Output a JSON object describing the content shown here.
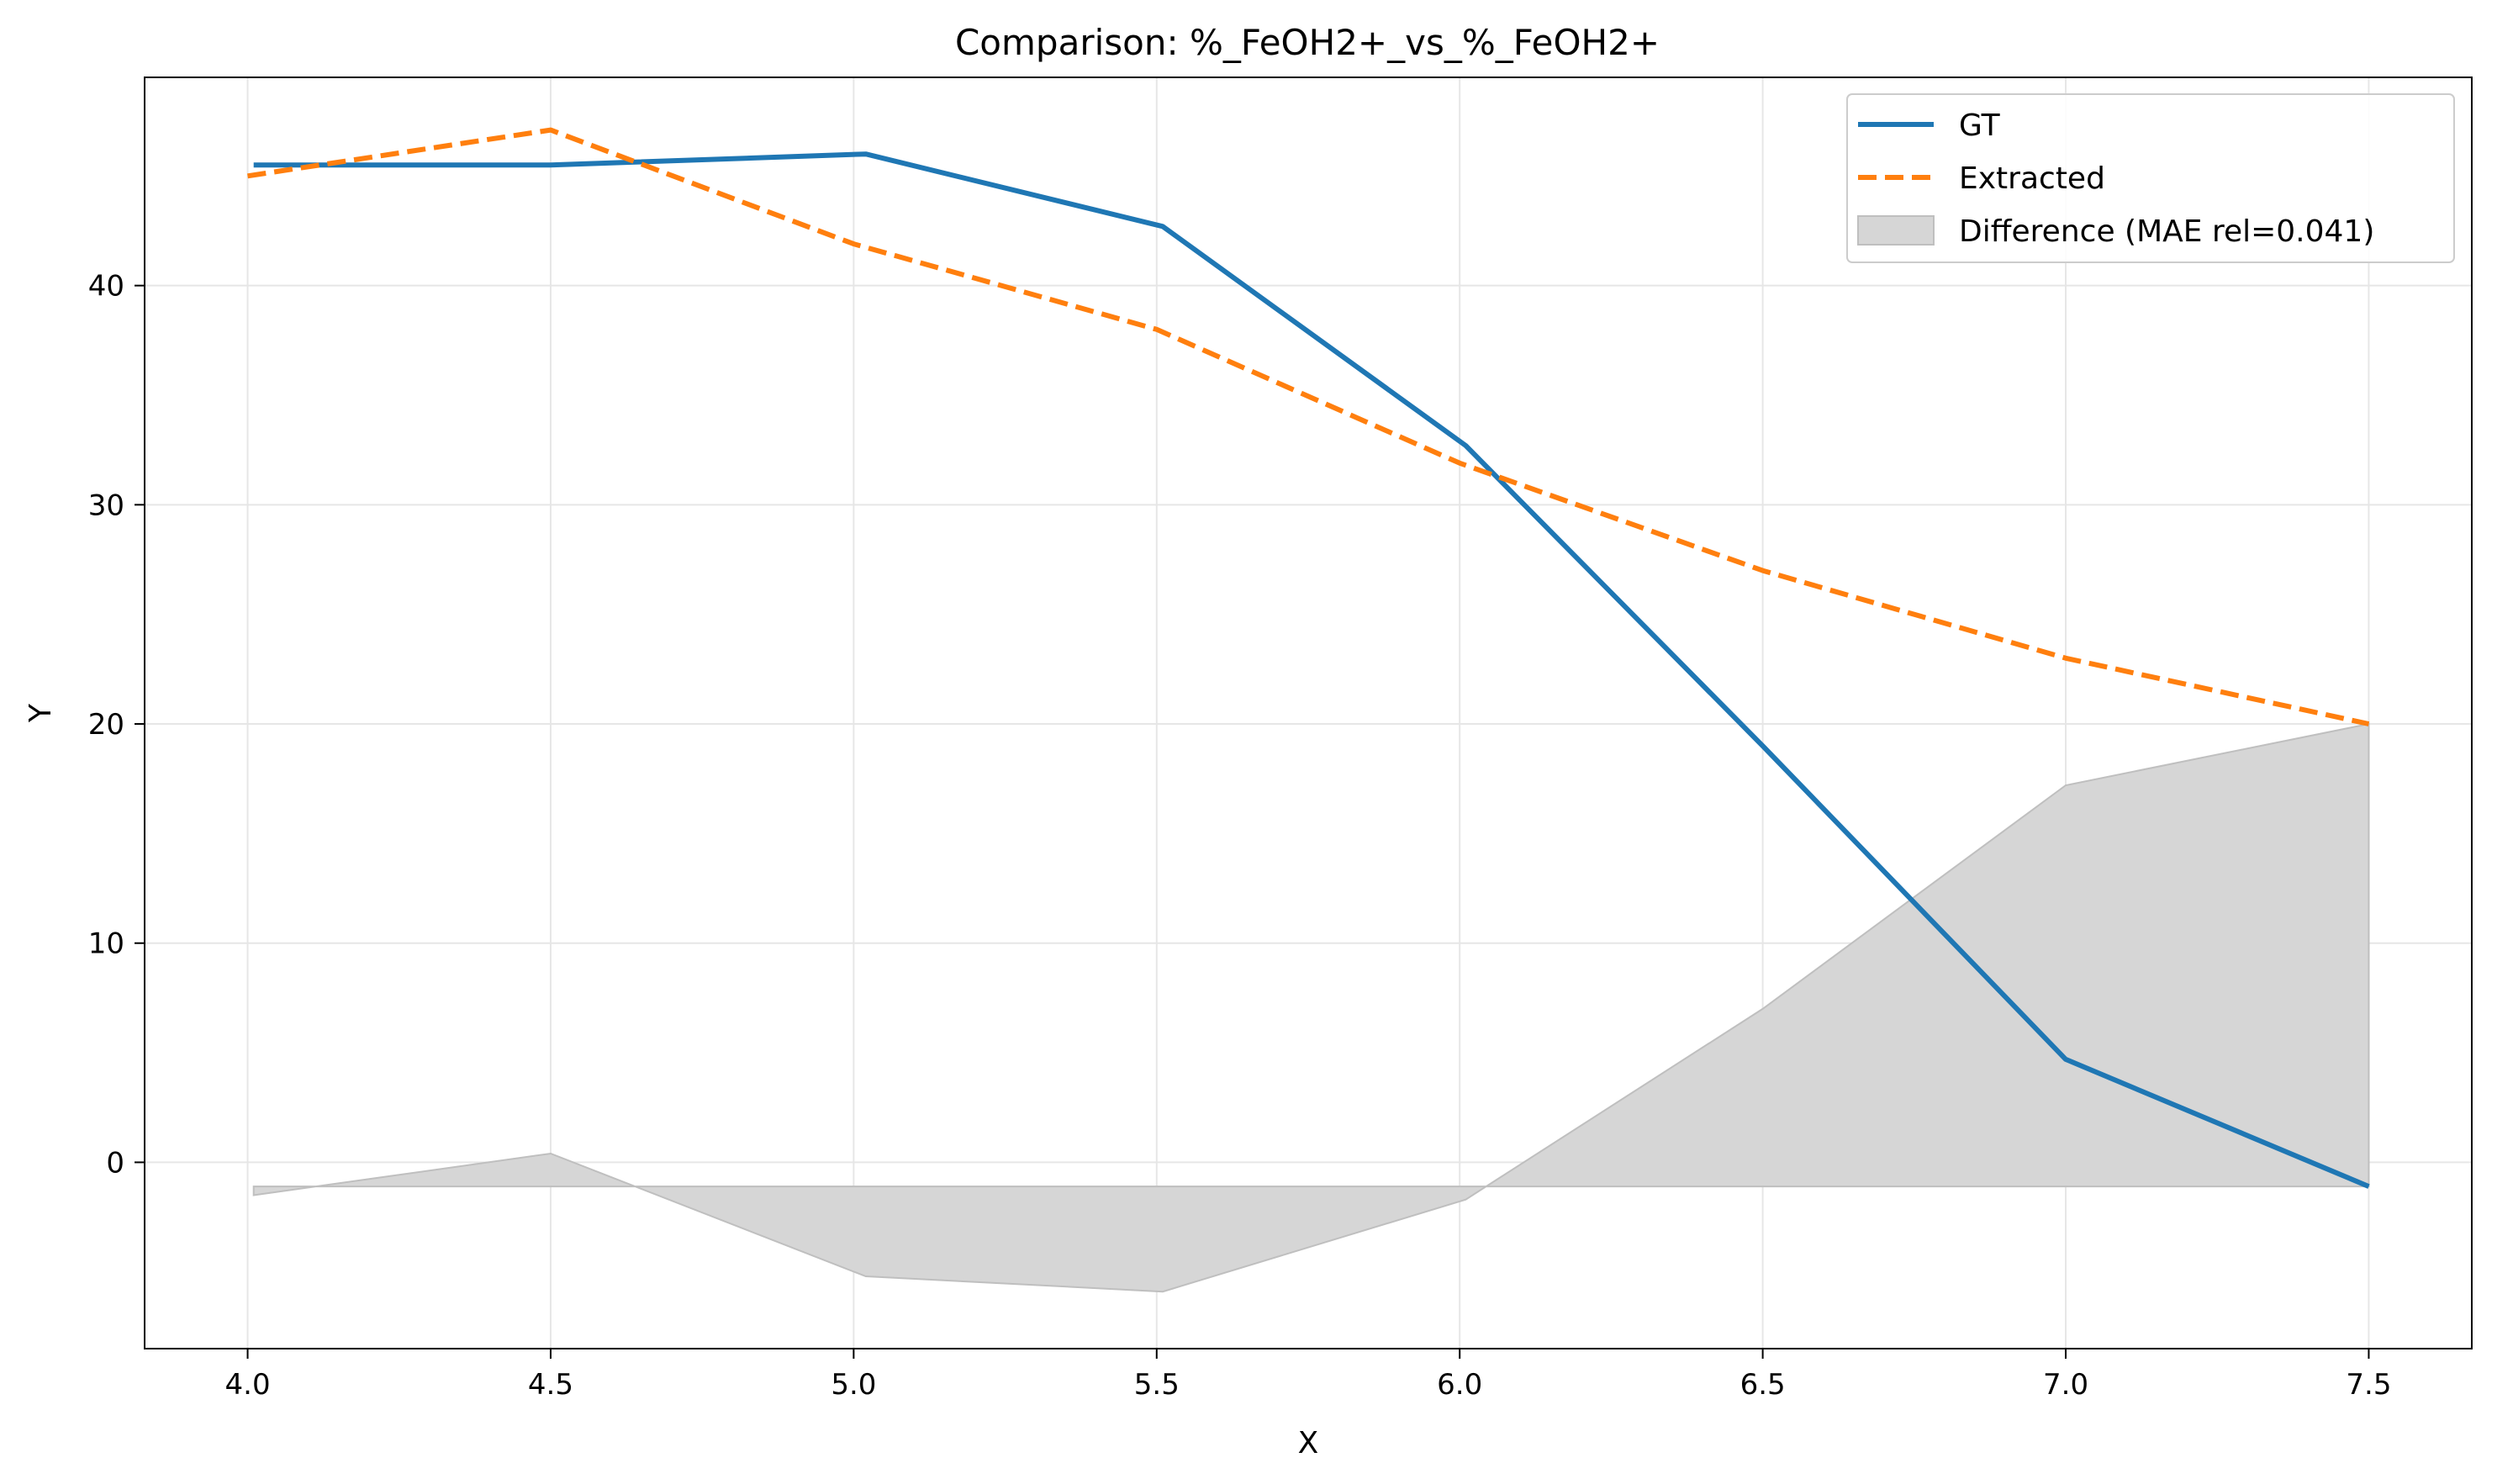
{
  "chart_data": {
    "type": "line",
    "title": "Comparison: %_FeOH2+_vs_%_FeOH2+",
    "xlabel": "X",
    "ylabel": "Y",
    "xlim": [
      3.83,
      7.67
    ],
    "ylim": [
      -8.5,
      49.5
    ],
    "xticks": [
      4.0,
      4.5,
      5.0,
      5.5,
      6.0,
      6.5,
      7.0,
      7.5
    ],
    "xtick_labels": [
      "4.0",
      "4.5",
      "5.0",
      "5.5",
      "6.0",
      "6.5",
      "7.0",
      "7.5"
    ],
    "yticks": [
      0,
      10,
      20,
      30,
      40
    ],
    "ytick_labels": [
      "0",
      "10",
      "20",
      "30",
      "40"
    ],
    "grid": true,
    "legend_position": "top-right",
    "series": [
      {
        "name": "GT",
        "color": "#1f77b4",
        "style": "solid",
        "x": [
          4.01,
          4.5,
          5.02,
          5.51,
          6.01,
          6.5,
          7.0,
          7.5
        ],
        "y": [
          45.5,
          45.5,
          46.0,
          42.7,
          32.7,
          19.0,
          4.7,
          -1.1
        ]
      },
      {
        "name": "Extracted",
        "color": "#ff7f0e",
        "style": "dashed",
        "x": [
          4.0,
          4.5,
          5.0,
          5.5,
          6.0,
          6.5,
          7.0,
          7.5
        ],
        "y": [
          45.0,
          47.1,
          41.9,
          38.0,
          31.9,
          27.0,
          23.0,
          20.0
        ]
      }
    ],
    "difference": {
      "name": "Difference (MAE rel=0.041)",
      "color": "#d6d6d6",
      "edge_color": "#bfbfbf",
      "baseline": -1.1,
      "x": [
        4.01,
        4.5,
        5.02,
        5.51,
        6.01,
        6.5,
        7.0,
        7.5
      ],
      "y": [
        -1.5,
        0.4,
        -5.2,
        -5.9,
        -1.7,
        7.0,
        17.2,
        20.0
      ]
    }
  }
}
